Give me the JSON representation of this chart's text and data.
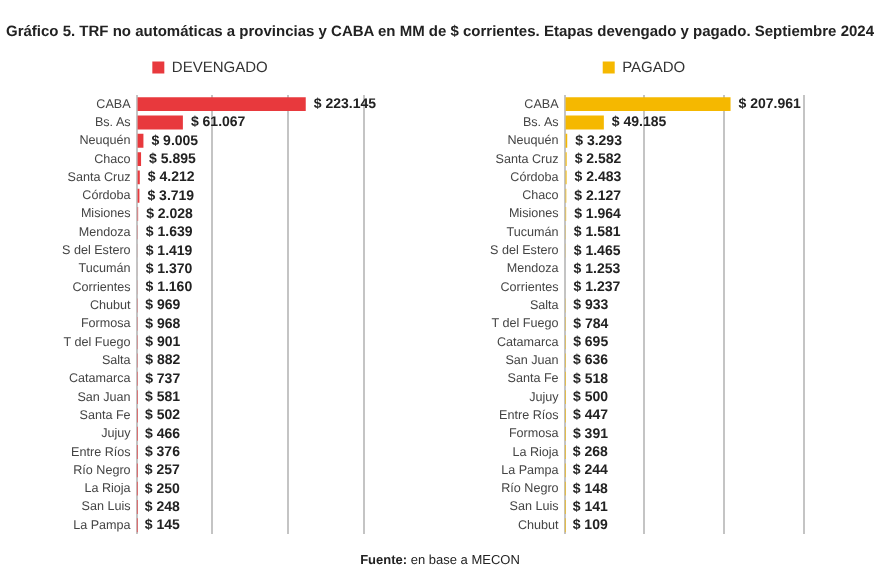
{
  "chart_data": [
    {
      "type": "bar",
      "orientation": "horizontal",
      "title": "Gráfico 5. TRF no automáticas a provincias y CABA en MM de $ corrientes. Etapas devengado y pagado. Septiembre 2024",
      "categories": [
        "CABA",
        "Bs. As",
        "Neuquén",
        "Chaco",
        "Santa Cruz",
        "Córdoba",
        "Misiones",
        "Mendoza",
        "S del Estero",
        "Tucumán",
        "Corrientes",
        "Chubut",
        "Formosa",
        "T del Fuego",
        "Salta",
        "Catamarca",
        "San Juan",
        "Santa Fe",
        "Jujuy",
        "Entre Ríos",
        "Río Negro",
        "La Rioja",
        "San Luis",
        "La Pampa"
      ],
      "series": [
        {
          "name": "DEVENGADO",
          "color": "#e8393d",
          "values": [
            223145,
            61067,
            9005,
            5895,
            4212,
            3719,
            2028,
            1639,
            1419,
            1370,
            1160,
            969,
            968,
            901,
            882,
            737,
            581,
            502,
            466,
            376,
            257,
            250,
            248,
            145
          ],
          "value_labels": [
            "$ 223.145",
            "$ 61.067",
            "$ 9.005",
            "$ 5.895",
            "$ 4.212",
            "$ 3.719",
            "$ 2.028",
            "$ 1.639",
            "$ 1.419",
            "$ 1.370",
            "$ 1.160",
            "$ 969",
            "$ 968",
            "$ 901",
            "$ 882",
            "$ 737",
            "$ 581",
            "$ 502",
            "$ 466",
            "$ 376",
            "$ 257",
            "$ 250",
            "$ 248",
            "$ 145"
          ]
        }
      ],
      "xlim": [
        0,
        300000
      ],
      "xticks": [
        {
          "value": 0,
          "label": null
        },
        {
          "value": 100000,
          "label": null
        },
        {
          "value": 200000,
          "label": null
        },
        {
          "value": 300000,
          "label": null
        }
      ],
      "grid": "x",
      "legend": "top",
      "tick_labels": "y"
    },
    {
      "type": "bar",
      "orientation": "horizontal",
      "categories": [
        "CABA",
        "Bs. As",
        "Neuquén",
        "Santa Cruz",
        "Córdoba",
        "Chaco",
        "Misiones",
        "Tucumán",
        "S del Estero",
        "Mendoza",
        "Corrientes",
        "Salta",
        "T del Fuego",
        "Catamarca",
        "San Juan",
        "Santa Fe",
        "Jujuy",
        "Entre Ríos",
        "Formosa",
        "La Rioja",
        "La Pampa",
        "Río Negro",
        "San Luis",
        "Chubut"
      ],
      "series": [
        {
          "name": "PAGADO",
          "color": "#f5b800",
          "values": [
            207961,
            49185,
            3293,
            2582,
            2483,
            2127,
            1964,
            1581,
            1465,
            1253,
            1237,
            933,
            784,
            695,
            636,
            518,
            500,
            447,
            391,
            268,
            244,
            148,
            141,
            109
          ],
          "value_labels": [
            "$ 207.961",
            "$ 49.185",
            "$ 3.293",
            "$ 2.582",
            "$ 2.483",
            "$ 2.127",
            "$ 1.964",
            "$ 1.581",
            "$ 1.465",
            "$ 1.253",
            "$ 1.237",
            "$ 933",
            "$ 784",
            "$ 695",
            "$ 636",
            "$ 518",
            "$ 500",
            "$ 447",
            "$ 391",
            "$ 268",
            "$ 244",
            "$ 148",
            "$ 141",
            "$ 109"
          ]
        }
      ],
      "xlim": [
        0,
        300000
      ],
      "xticks": [
        {
          "value": 0,
          "label": null
        },
        {
          "value": 100000,
          "label": null
        },
        {
          "value": 200000,
          "label": null
        },
        {
          "value": 300000,
          "label": null
        }
      ],
      "grid": "x",
      "legend": "top",
      "tick_labels": "y",
      "annotations": [
        "Fuente: en base a MECON"
      ]
    }
  ]
}
